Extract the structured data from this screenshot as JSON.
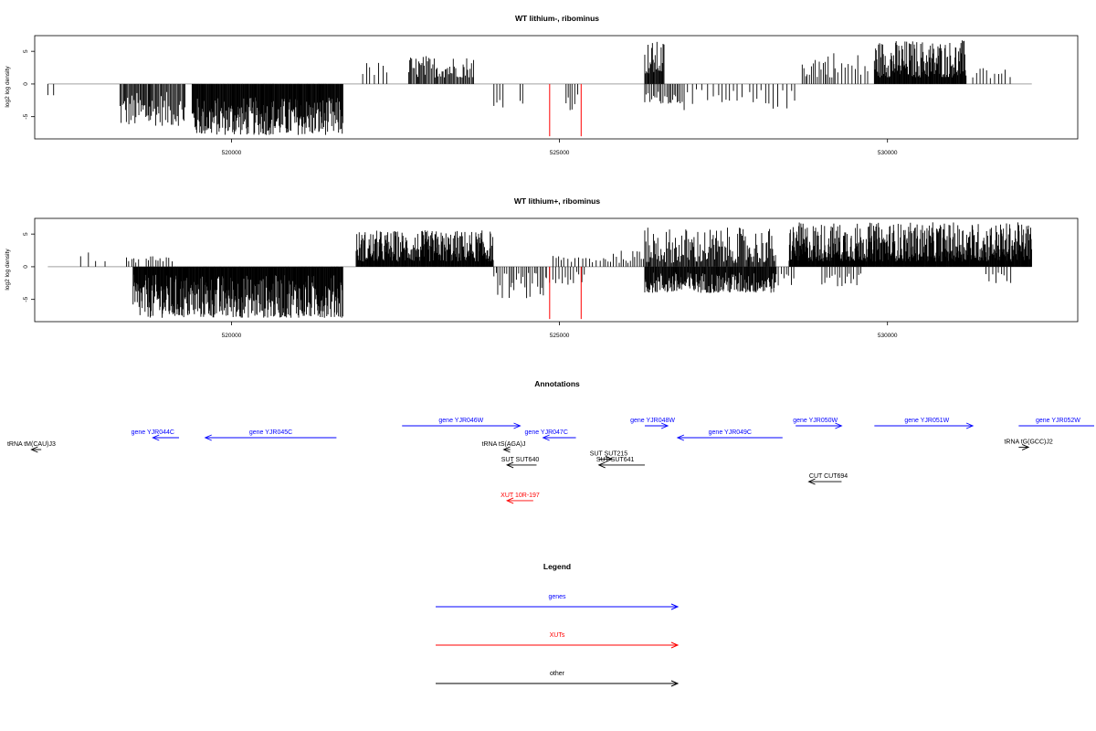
{
  "chart_data": [
    {
      "type": "bar",
      "title": "WT lithium-, ribominus",
      "xlabel": "",
      "ylabel": "log2 log density",
      "xlim": [
        517000,
        532900
      ],
      "ylim": [
        -8.4,
        7.4
      ],
      "x_ticks": [
        520000,
        525000,
        530000
      ],
      "x_tick_labels": [
        "520000",
        "525000",
        "530000"
      ],
      "y_ticks": [
        -5,
        0,
        5
      ],
      "y_tick_labels": [
        "-5",
        "0",
        "5"
      ],
      "baseline_range": [
        517200,
        532200
      ],
      "grid": false,
      "series": [
        {
          "color": "#000000",
          "regions": [
            {
              "start": 517200,
              "end": 517300,
              "spacing": 100,
              "min": -2.2,
              "max": -1.3
            },
            {
              "start": 518300,
              "end": 519300,
              "spacing": 16,
              "min": -6.4,
              "max": -1.2
            },
            {
              "start": 519400,
              "end": 521700,
              "spacing": 9,
              "min": -7.8,
              "max": -2.0
            },
            {
              "start": 522000,
              "end": 522400,
              "spacing": 60,
              "min": 1.3,
              "max": 3.4
            },
            {
              "start": 522700,
              "end": 523700,
              "spacing": 18,
              "min": 1.0,
              "max": 4.4
            },
            {
              "start": 524000,
              "end": 524150,
              "spacing": 40,
              "min": -5.3,
              "max": -1.0
            },
            {
              "start": 524400,
              "end": 524450,
              "spacing": 50,
              "min": -3.0,
              "max": -2.0
            },
            {
              "start": 525100,
              "end": 525300,
              "spacing": 40,
              "min": -4.0,
              "max": -1.0
            },
            {
              "start": 526300,
              "end": 526600,
              "spacing": 12,
              "min": 1.5,
              "max": 6.6
            },
            {
              "start": 526300,
              "end": 526900,
              "spacing": 25,
              "min": -3.0,
              "max": -1.0
            },
            {
              "start": 526900,
              "end": 527800,
              "spacing": 70,
              "min": -4.0,
              "max": -0.8
            },
            {
              "start": 527900,
              "end": 528600,
              "spacing": 60,
              "min": -3.8,
              "max": -0.8
            },
            {
              "start": 528700,
              "end": 529200,
              "spacing": 28,
              "min": 1.0,
              "max": 5.2
            },
            {
              "start": 529200,
              "end": 529700,
              "spacing": 50,
              "min": 1.0,
              "max": 4.8
            },
            {
              "start": 529800,
              "end": 531200,
              "spacing": 9,
              "min": 1.0,
              "max": 6.8
            },
            {
              "start": 531300,
              "end": 531900,
              "spacing": 60,
              "min": 0.8,
              "max": 3.5
            }
          ]
        },
        {
          "color": "#ff0000",
          "bars": [
            {
              "x": 524850,
              "y": -8.0
            },
            {
              "x": 525330,
              "y": -8.0
            }
          ]
        }
      ]
    },
    {
      "type": "bar",
      "title": "WT lithium+, ribominus",
      "xlabel": "",
      "ylabel": "log2 log density",
      "xlim": [
        517000,
        532900
      ],
      "ylim": [
        -8.4,
        7.4
      ],
      "x_ticks": [
        520000,
        525000,
        530000
      ],
      "x_tick_labels": [
        "520000",
        "525000",
        "530000"
      ],
      "y_ticks": [
        -5,
        0,
        5
      ],
      "y_tick_labels": [
        "-5",
        "0",
        "5"
      ],
      "baseline_range": [
        517200,
        532200
      ],
      "grid": false,
      "series": [
        {
          "color": "#000000",
          "regions": [
            {
              "start": 517700,
              "end": 518100,
              "spacing": 120,
              "min": 0.8,
              "max": 2.2
            },
            {
              "start": 518400,
              "end": 518600,
              "spacing": 40,
              "min": 0.6,
              "max": 1.5
            },
            {
              "start": 518500,
              "end": 521700,
              "spacing": 8,
              "min": -7.8,
              "max": -1.2
            },
            {
              "start": 518700,
              "end": 519100,
              "spacing": 40,
              "min": 0.8,
              "max": 1.8
            },
            {
              "start": 521900,
              "end": 524000,
              "spacing": 8,
              "min": 0.8,
              "max": 5.6
            },
            {
              "start": 524000,
              "end": 524800,
              "spacing": 30,
              "min": -4.8,
              "max": -0.8
            },
            {
              "start": 524800,
              "end": 525400,
              "spacing": 40,
              "min": -2.8,
              "max": -0.8
            },
            {
              "start": 524900,
              "end": 525700,
              "spacing": 50,
              "min": 0.6,
              "max": 2.0
            },
            {
              "start": 525700,
              "end": 526300,
              "spacing": 40,
              "min": 0.6,
              "max": 2.5
            },
            {
              "start": 526300,
              "end": 528300,
              "spacing": 10,
              "min": -4.0,
              "max": -0.8
            },
            {
              "start": 526300,
              "end": 528300,
              "spacing": 14,
              "min": 0.6,
              "max": 6.0
            },
            {
              "start": 528200,
              "end": 528600,
              "spacing": 40,
              "min": -3.2,
              "max": -0.8
            },
            {
              "start": 528500,
              "end": 532200,
              "spacing": 7,
              "min": 0.8,
              "max": 6.8
            },
            {
              "start": 529000,
              "end": 529600,
              "spacing": 40,
              "min": -3.0,
              "max": -0.8
            },
            {
              "start": 531500,
              "end": 531900,
              "spacing": 50,
              "min": -2.5,
              "max": -0.8
            }
          ]
        },
        {
          "color": "#ff0000",
          "bars": [
            {
              "x": 524850,
              "y": -8.0
            },
            {
              "x": 525330,
              "y": -8.0
            }
          ]
        }
      ]
    }
  ],
  "annotations": {
    "title": "Annotations",
    "features": [
      {
        "label": "gene YJR044C",
        "category": "genes",
        "x1": 519200,
        "x2": 518800,
        "row": 2,
        "label_x": 518800
      },
      {
        "label": "gene YJR045C",
        "category": "genes",
        "x1": 521600,
        "x2": 519600,
        "row": 2,
        "label_x": 520600
      },
      {
        "label": "gene YJR046W",
        "category": "genes",
        "x1": 522600,
        "x2": 524400,
        "row": 1,
        "label_x": 523500
      },
      {
        "label": "gene YJR047C",
        "category": "genes",
        "x1": 525250,
        "x2": 524750,
        "row": 2,
        "label_x": 524800
      },
      {
        "label": "gene YJR048W",
        "category": "genes",
        "x1": 526300,
        "x2": 526650,
        "row": 1,
        "label_x": 526420
      },
      {
        "label": "gene YJR049C",
        "category": "genes",
        "x1": 528400,
        "x2": 526800,
        "row": 2,
        "label_x": 527600
      },
      {
        "label": "gene YJR050W",
        "category": "genes",
        "x1": 528600,
        "x2": 529300,
        "row": 1,
        "label_x": 528900
      },
      {
        "label": "gene YJR051W",
        "category": "genes",
        "x1": 529800,
        "x2": 531300,
        "row": 1,
        "label_x": 530600
      },
      {
        "label": "gene YJR052W",
        "category": "genes",
        "x1": 532000,
        "x2": 533400,
        "row": 1,
        "label_x": 532600
      },
      {
        "label": "tRNA tM(CAU)J3",
        "category": "other",
        "x1": 517100,
        "x2": 516950,
        "row": 3,
        "label_x": 516950
      },
      {
        "label": "tRNA tS(AGA)J",
        "category": "other",
        "x1": 524250,
        "x2": 524150,
        "row": 3,
        "label_x": 524150
      },
      {
        "label": "tRNA tG(GCC)J2",
        "category": "other",
        "x1": 532000,
        "x2": 532150,
        "row": 2.8,
        "label_x": 532150
      },
      {
        "label": "SUT SUT640",
        "category": "other",
        "x1": 524650,
        "x2": 524200,
        "row": 4.3,
        "label_x": 524400
      },
      {
        "label": "SUT SUT215",
        "category": "other",
        "x1": 525600,
        "x2": 525800,
        "row": 3.8,
        "label_x": 525750
      },
      {
        "label": "SUT SUT641",
        "category": "other",
        "x1": 526300,
        "x2": 525600,
        "row": 4.3,
        "label_x": 525850
      },
      {
        "label": "CUT CUT694",
        "category": "other",
        "x1": 529300,
        "x2": 528800,
        "row": 5.7,
        "label_x": 529100
      },
      {
        "label": "XUT 10R-197",
        "category": "XUTs",
        "x1": 524600,
        "x2": 524200,
        "row": 7.3,
        "label_x": 524400
      }
    ]
  },
  "legend": {
    "title": "Legend",
    "items": [
      {
        "label": "genes",
        "color": "#0000ff"
      },
      {
        "label": "XUTs",
        "color": "#ff0000"
      },
      {
        "label": "other",
        "color": "#000000"
      }
    ]
  },
  "colors": {
    "genes": "#0000ff",
    "XUTs": "#ff0000",
    "other": "#000000",
    "baseline": "#a0a0a0"
  }
}
